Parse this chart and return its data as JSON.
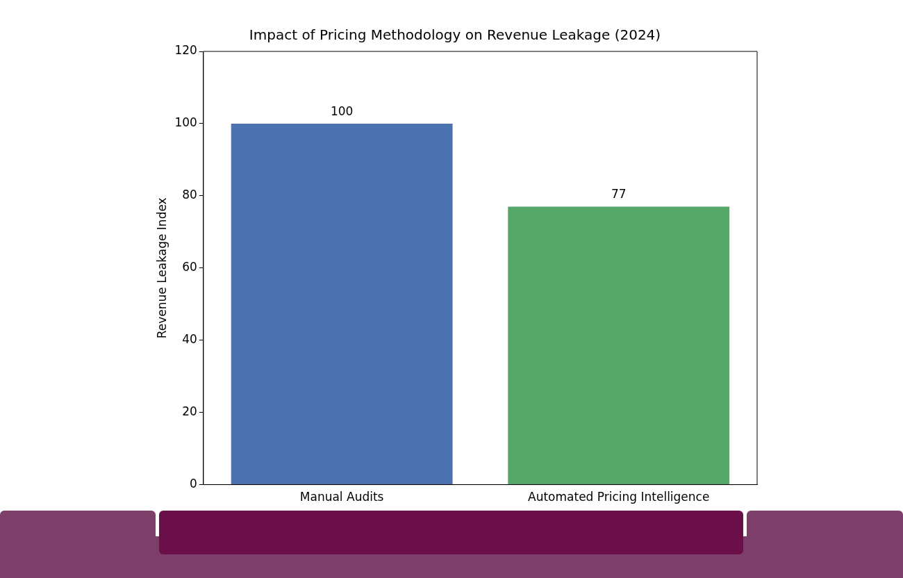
{
  "chart_data": {
    "type": "bar",
    "title": "Impact of Pricing Methodology on Revenue Leakage (2024)",
    "ylabel": "Revenue Leakage Index",
    "categories": [
      "Manual Audits",
      "Automated Pricing Intelligence"
    ],
    "values": [
      100,
      77
    ],
    "colors": [
      "#4c72b0",
      "#55a868"
    ],
    "ylim": [
      0,
      120
    ],
    "yticks": [
      0,
      20,
      40,
      60,
      80,
      100,
      120
    ],
    "data_labels": true,
    "grid": false,
    "legend": false
  }
}
